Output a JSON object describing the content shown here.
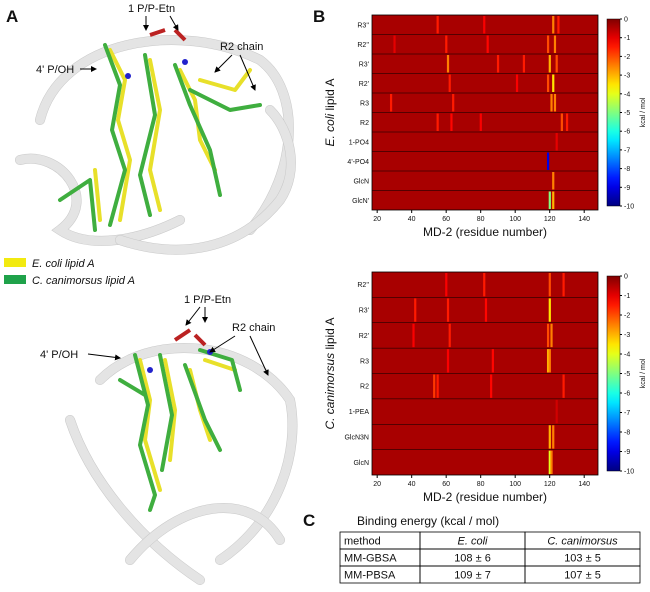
{
  "panel_a": {
    "label": "A",
    "top": {
      "phosphate": "1 P/P-Etn",
      "four_prime": "4' P/OH",
      "chain": "R2 chain"
    },
    "legend": [
      "E. coli lipid A",
      "C. canimorsus lipid A"
    ],
    "bottom": {
      "phosphate": "1 P/P-Etn",
      "four_prime": "4' P/OH",
      "chain": "R2 chain"
    }
  },
  "panel_b": {
    "label": "B",
    "colorbar_label": "kcal / mol",
    "colorbar_range": [
      0,
      -10
    ],
    "colorbar_ticks": [
      0,
      -1,
      -2,
      -3,
      -4,
      -5,
      -6,
      -7,
      -8,
      -9,
      -10
    ],
    "x_label": "MD-2 (residue number)",
    "x_range": [
      17,
      148
    ],
    "x_ticks": [
      20,
      40,
      60,
      80,
      100,
      120,
      140
    ],
    "heatmaps": [
      {
        "y_title": {
          "species": "E. coli",
          "rest": "lipid A"
        },
        "rows": [
          {
            "label": "R3''",
            "hotspots": [
              [
                55,
                -1.5
              ],
              [
                82,
                -1.2
              ],
              [
                122,
                -2.5
              ],
              [
                125,
                -1.5
              ]
            ]
          },
          {
            "label": "R2''",
            "hotspots": [
              [
                30,
                -1
              ],
              [
                60,
                -1.5
              ],
              [
                84,
                -1.3
              ],
              [
                119,
                -2
              ],
              [
                123,
                -2.5
              ]
            ]
          },
          {
            "label": "R3'",
            "hotspots": [
              [
                61,
                -2.5
              ],
              [
                90,
                -1.5
              ],
              [
                105,
                -1.5
              ],
              [
                120,
                -3
              ],
              [
                124,
                -2
              ]
            ]
          },
          {
            "label": "R2'",
            "hotspots": [
              [
                62,
                -1.5
              ],
              [
                101,
                -1.2
              ],
              [
                119,
                -2
              ],
              [
                122,
                -3.5
              ]
            ]
          },
          {
            "label": "R3",
            "hotspots": [
              [
                28,
                -1.5
              ],
              [
                64,
                -1.5
              ],
              [
                121,
                -2.5
              ],
              [
                123,
                -2.5
              ]
            ]
          },
          {
            "label": "R2",
            "hotspots": [
              [
                55,
                -1.5
              ],
              [
                63,
                -1.3
              ],
              [
                80,
                -1.2
              ],
              [
                127,
                -2
              ],
              [
                130,
                -1.5
              ]
            ]
          },
          {
            "label": "1-PO4",
            "hotspots": [
              [
                124,
                -1
              ]
            ]
          },
          {
            "label": "4'-PO4",
            "hotspots": [
              [
                119,
                -9
              ]
            ]
          },
          {
            "label": "GlcN",
            "hotspots": [
              [
                122,
                -2.5
              ]
            ]
          },
          {
            "label": "GlcN'",
            "hotspots": [
              [
                120,
                -5
              ],
              [
                122,
                -3
              ]
            ]
          }
        ]
      },
      {
        "y_title": {
          "species": "C. canimorsus",
          "rest": "lipid A"
        },
        "rows": [
          {
            "label": "R2''",
            "hotspots": [
              [
                60,
                -1.2
              ],
              [
                82,
                -1.5
              ],
              [
                120,
                -2
              ],
              [
                128,
                -1.5
              ]
            ]
          },
          {
            "label": "R3'",
            "hotspots": [
              [
                42,
                -1.5
              ],
              [
                61,
                -1.5
              ],
              [
                83,
                -1.3
              ],
              [
                120,
                -3.5
              ]
            ]
          },
          {
            "label": "R2'",
            "hotspots": [
              [
                41,
                -1.2
              ],
              [
                62,
                -1.5
              ],
              [
                119,
                -2
              ],
              [
                121,
                -2.5
              ]
            ]
          },
          {
            "label": "R3",
            "hotspots": [
              [
                61,
                -1.2
              ],
              [
                87,
                -1.3
              ],
              [
                119,
                -3
              ],
              [
                120,
                -2.5
              ]
            ]
          },
          {
            "label": "R2",
            "hotspots": [
              [
                53,
                -1.8
              ],
              [
                55,
                -1.5
              ],
              [
                86,
                -1.3
              ],
              [
                128,
                -1.5
              ]
            ]
          },
          {
            "label": "1-PEA",
            "hotspots": [
              [
                124,
                -0.8
              ]
            ]
          },
          {
            "label": "GlcN3N",
            "hotspots": [
              [
                120,
                -3
              ],
              [
                122,
                -2.5
              ]
            ]
          },
          {
            "label": "GlcN",
            "hotspots": [
              [
                120,
                -4
              ],
              [
                121,
                -2.5
              ]
            ]
          }
        ]
      }
    ]
  },
  "panel_c": {
    "label": "C",
    "title": "Binding energy (kcal / mol)",
    "table": {
      "header": [
        "method",
        "E. coli",
        "C. canimorsus"
      ],
      "rows": [
        [
          "MM-GBSA",
          "108 ± 6",
          "103 ± 5"
        ],
        [
          "MM-PBSA",
          "109 ± 7",
          "107 ± 5"
        ]
      ]
    }
  }
}
